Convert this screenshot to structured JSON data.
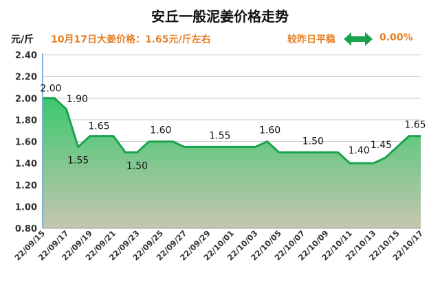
{
  "header": {
    "title": "安丘一般泥姜价格走势",
    "unit": "元/斤",
    "headline": "10月17日大姜价格：1.65元/斤左右",
    "compare_label": "较昨日平稳",
    "compare_value": "0.00%",
    "compare_icon": "double-arrow-icon",
    "accent_color": "#e67e22",
    "icon_color": "#1aa34a"
  },
  "chart_data": {
    "type": "area",
    "title": "安丘一般泥姜价格走势",
    "ylabel": "元/斤",
    "ylim": [
      0.8,
      2.4
    ],
    "yticks": [
      "0.80",
      "1.00",
      "1.20",
      "1.40",
      "1.60",
      "1.80",
      "2.00",
      "2.20",
      "2.40"
    ],
    "grid": true,
    "x": [
      "22/09/15",
      "22/09/16",
      "22/09/17",
      "22/09/18",
      "22/09/19",
      "22/09/20",
      "22/09/21",
      "22/09/22",
      "22/09/23",
      "22/09/24",
      "22/09/25",
      "22/09/26",
      "22/09/27",
      "22/09/28",
      "22/09/29",
      "22/09/30",
      "22/10/01",
      "22/10/02",
      "22/10/03",
      "22/10/04",
      "22/10/05",
      "22/10/06",
      "22/10/07",
      "22/10/08",
      "22/10/09",
      "22/10/10",
      "22/10/11",
      "22/10/12",
      "22/10/13",
      "22/10/14",
      "22/10/15",
      "22/10/16",
      "22/10/17"
    ],
    "xtick_labels": [
      "22/09/15",
      "22/09/17",
      "22/09/19",
      "22/09/21",
      "22/09/23",
      "22/09/25",
      "22/09/27",
      "22/09/29",
      "22/10/01",
      "22/10/03",
      "22/10/05",
      "22/10/07",
      "22/10/09",
      "22/10/11",
      "22/10/13",
      "22/10/15",
      "22/10/17"
    ],
    "series": [
      {
        "values": [
          2.0,
          2.0,
          1.9,
          1.55,
          1.65,
          1.65,
          1.65,
          1.5,
          1.5,
          1.6,
          1.6,
          1.6,
          1.55,
          1.55,
          1.55,
          1.55,
          1.55,
          1.55,
          1.55,
          1.6,
          1.5,
          1.5,
          1.5,
          1.5,
          1.5,
          1.5,
          1.4,
          1.4,
          1.4,
          1.45,
          1.55,
          1.65,
          1.65
        ]
      }
    ],
    "data_labels": [
      {
        "index": 0,
        "text": "2.00"
      },
      {
        "index": 2,
        "text": "1.90"
      },
      {
        "index": 3,
        "text": "1.55"
      },
      {
        "index": 5,
        "text": "1.65"
      },
      {
        "index": 8,
        "text": "1.50"
      },
      {
        "index": 10,
        "text": "1.60"
      },
      {
        "index": 15,
        "text": "1.55"
      },
      {
        "index": 19,
        "text": "1.60"
      },
      {
        "index": 23,
        "text": "1.50"
      },
      {
        "index": 27,
        "text": "1.40"
      },
      {
        "index": 29,
        "text": "1.45"
      },
      {
        "index": 32,
        "text": "1.65"
      }
    ],
    "line_color": "#1aa34a",
    "fill_top_color": "#3cc86e",
    "fill_bottom_color": "#c6c6b0"
  }
}
